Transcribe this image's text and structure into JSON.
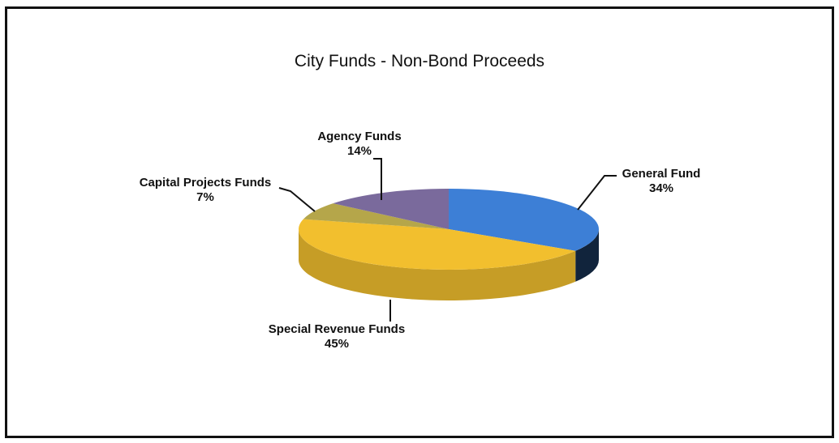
{
  "chart_data": {
    "type": "pie",
    "title": "City Funds - Non-Bond Proceeds",
    "slices": [
      {
        "label": "General Fund",
        "value": 34,
        "value_label": "34%",
        "color": "#3d7fd6"
      },
      {
        "label": "Special Revenue Funds",
        "value": 45,
        "value_label": "45%",
        "color": "#f2bf2e"
      },
      {
        "label": "Capital Projects Funds",
        "value": 7,
        "value_label": "7%",
        "color": "#b5a64a"
      },
      {
        "label": "Agency Funds",
        "value": 14,
        "value_label": "14%",
        "color": "#7a6a9c"
      }
    ],
    "style": "3d-pie",
    "legend": "none"
  }
}
